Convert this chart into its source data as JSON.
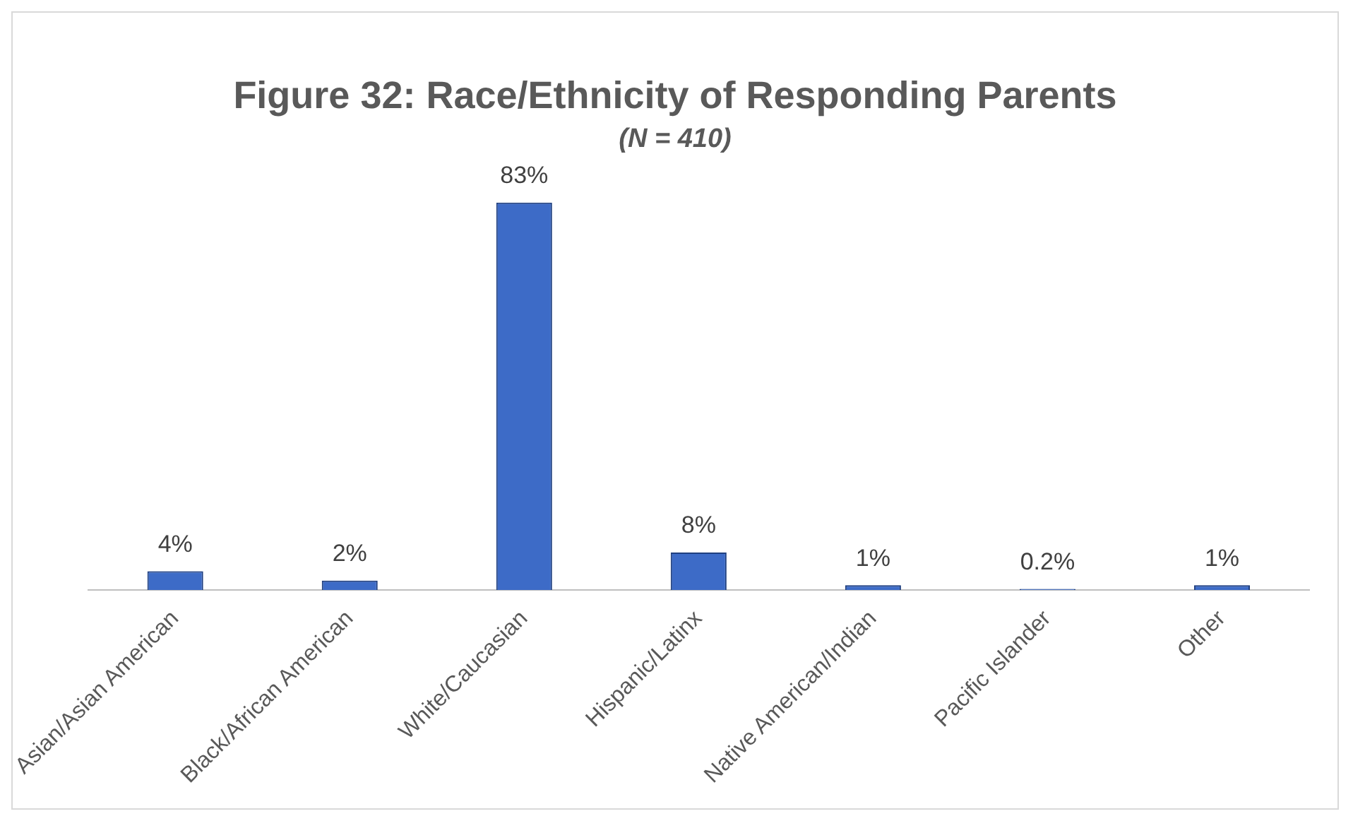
{
  "chart_data": {
    "type": "bar",
    "title": "Figure 32: Race/Ethnicity of Responding Parents",
    "subtitle": "(N = 410)",
    "categories": [
      "Asian/Asian American",
      "Black/African American",
      "White/Caucasian",
      "Hispanic/Latinx",
      "Native American/Indian",
      "Pacific Islander",
      "Other"
    ],
    "values": [
      4,
      2,
      83,
      8,
      1,
      0.2,
      1
    ],
    "value_labels": [
      "4%",
      "2%",
      "83%",
      "8%",
      "1%",
      "0.2%",
      "1%"
    ],
    "color": "#3d6bc7",
    "grid": false,
    "legend": false
  }
}
